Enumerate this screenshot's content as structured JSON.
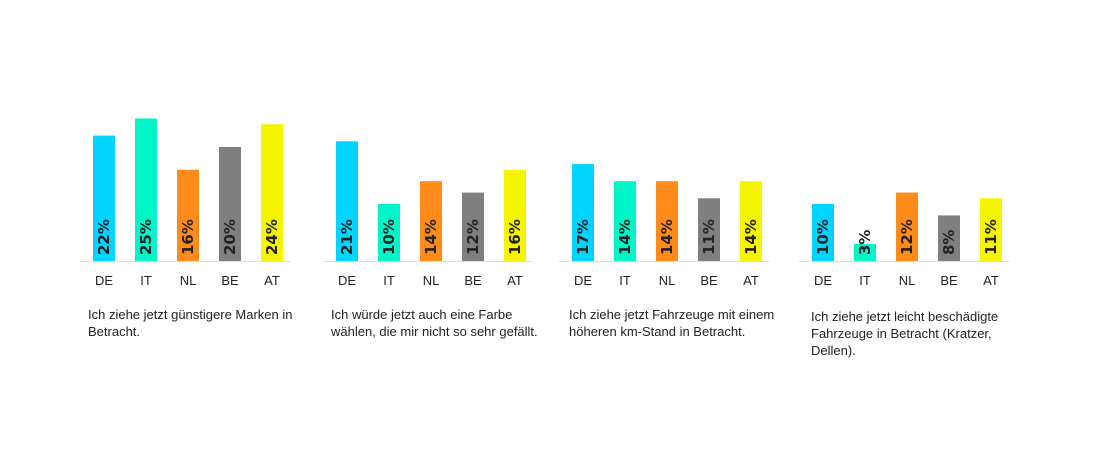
{
  "chart_data": [
    {
      "type": "bar",
      "categories": [
        "DE",
        "IT",
        "NL",
        "BE",
        "AT"
      ],
      "values": [
        22,
        25,
        16,
        20,
        24
      ],
      "unit": "%",
      "title": "Ich ziehe jetzt günstigere Marken in Betracht."
    },
    {
      "type": "bar",
      "categories": [
        "DE",
        "IT",
        "NL",
        "BE",
        "AT"
      ],
      "values": [
        21,
        10,
        14,
        12,
        16
      ],
      "unit": "%",
      "title": "Ich würde jetzt auch eine Farbe wählen, die mir nicht so sehr gefällt."
    },
    {
      "type": "bar",
      "categories": [
        "DE",
        "IT",
        "NL",
        "BE",
        "AT"
      ],
      "values": [
        17,
        14,
        14,
        11,
        14
      ],
      "unit": "%",
      "title": "Ich ziehe jetzt Fahrzeuge mit einem höheren km-Stand in Betracht."
    },
    {
      "type": "bar",
      "categories": [
        "DE",
        "IT",
        "NL",
        "BE",
        "AT"
      ],
      "values": [
        10,
        3,
        12,
        8,
        11
      ],
      "unit": "%",
      "title": "Ich ziehe jetzt leicht beschädigte Fahrzeuge in Betracht (Kratzer, Dellen)."
    }
  ],
  "colors": {
    "DE": "#00d4ff",
    "IT": "#00f5c8",
    "NL": "#ff8c1a",
    "BE": "#7f7f7f",
    "AT": "#f5f500",
    "baseline": "#dddddd"
  }
}
